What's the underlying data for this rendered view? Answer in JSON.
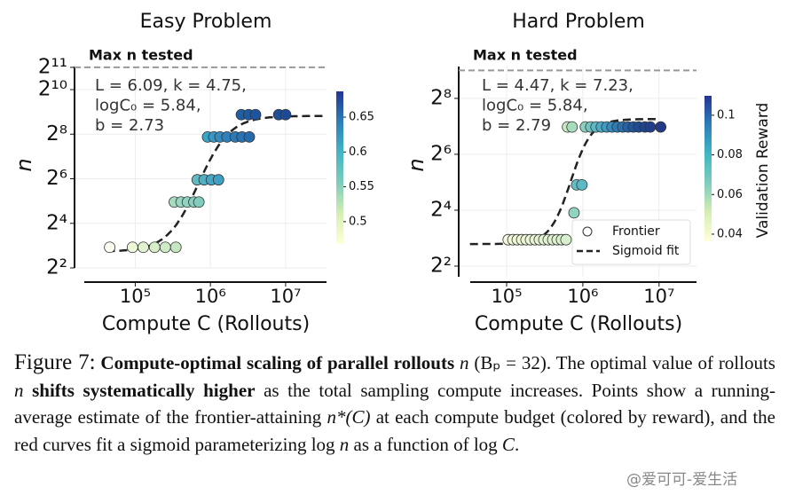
{
  "chart_data": [
    {
      "type": "scatter",
      "title": "Easy Problem",
      "xlabel": "Compute C (Rollouts)",
      "ylabel": "n",
      "xscale": "log",
      "yscale": "log2",
      "xlim": [
        21000,
        35000000
      ],
      "ylim": [
        4,
        2100
      ],
      "xticks": [
        {
          "value": 100000,
          "label": "10⁵"
        },
        {
          "value": 1000000,
          "label": "10⁶"
        },
        {
          "value": 10000000,
          "label": "10⁷"
        }
      ],
      "yticks": [
        {
          "value": 4,
          "label": "2²"
        },
        {
          "value": 16,
          "label": "2⁴"
        },
        {
          "value": 64,
          "label": "2⁶"
        },
        {
          "value": 256,
          "label": "2⁸"
        },
        {
          "value": 1024,
          "label": "2¹⁰"
        },
        {
          "value": 2048,
          "label": "2¹¹"
        }
      ],
      "grid": true,
      "max_n": 2048,
      "max_n_label": "Max n tested",
      "series": [
        {
          "x": [
            45700,
            92000,
            128000,
            181000,
            251000,
            347000,
            331000,
            407000,
            494000,
            603000,
            702000,
            667000,
            825000,
            1030000,
            1280000,
            916000,
            1110000,
            1340000,
            1660000,
            2140000,
            2630000,
            3290000,
            2580000,
            3230000,
            3980000,
            8100000,
            10000000
          ],
          "values": [
            7.6,
            7.6,
            7.6,
            7.6,
            7.6,
            7.6,
            31,
            31,
            31,
            31,
            31,
            62,
            62,
            62,
            62,
            235,
            235,
            235,
            235,
            235,
            235,
            235,
            470,
            470,
            470,
            470,
            470
          ],
          "colors": [
            "#fbfdf0",
            "#eef8d8",
            "#e1f3cf",
            "#d6efc8",
            "#cdebc4",
            "#c4e7c0",
            "#a6dcc0",
            "#98d6c1",
            "#8fd3c0",
            "#88cfbf",
            "#80ccbf",
            "#5fbcc3",
            "#4fb1c6",
            "#45a7c7",
            "#3f9fc5",
            "#3aa4c6",
            "#3a96c2",
            "#348bbf",
            "#2f80ba",
            "#2c79b6",
            "#2a72b2",
            "#276aad",
            "#1f5fa5",
            "#1e5aa2",
            "#1d549f",
            "#1e4f99",
            "#1d4a94"
          ]
        }
      ],
      "fit": {
        "L": 6.09,
        "k": 4.75,
        "logC0": 5.84,
        "b": 2.73
      },
      "fit_xrange": [
        42000,
        35000000
      ],
      "fit_labels": [
        "L = 6.09, k = 4.75,",
        "logC₀ = 5.84,",
        "b = 2.73"
      ],
      "colorbar": {
        "lim": [
          0.468,
          0.687
        ],
        "ticks": [
          0.5,
          0.55,
          0.6,
          0.65
        ]
      },
      "legend": false
    },
    {
      "type": "scatter",
      "title": "Hard Problem",
      "xlabel": "Compute C (Rollouts)",
      "ylabel": "n",
      "xscale": "log",
      "yscale": "log2",
      "xlim": [
        23500,
        31000000
      ],
      "ylim": [
        3.07,
        564
      ],
      "xticks": [
        {
          "value": 100000,
          "label": "10⁵"
        },
        {
          "value": 1000000,
          "label": "10⁶"
        },
        {
          "value": 10000000,
          "label": "10⁷"
        }
      ],
      "yticks": [
        {
          "value": 4,
          "label": "2²"
        },
        {
          "value": 16,
          "label": "2⁴"
        },
        {
          "value": 64,
          "label": "2⁶"
        },
        {
          "value": 256,
          "label": "2⁸"
        }
      ],
      "grid": true,
      "max_n": 512,
      "max_n_label": "Max n tested",
      "series": [
        {
          "name": "Frontier",
          "x": [
            105000,
            121000,
            138000,
            158000,
            180000,
            206000,
            236000,
            269000,
            308000,
            352000,
            403000,
            461000,
            526000,
            601000,
            766000,
            830000,
            973000,
            630000,
            722000,
            1080000,
            1270000,
            1490000,
            1750000,
            2060000,
            2420000,
            2840000,
            3340000,
            3920000,
            4600000,
            5410000,
            6520000,
            7660000,
            10500000
          ],
          "values": [
            7.7,
            7.7,
            7.7,
            7.7,
            7.7,
            7.7,
            7.7,
            7.7,
            7.7,
            7.7,
            7.7,
            7.7,
            7.7,
            7.7,
            15,
            30,
            30,
            126,
            126,
            126,
            126,
            126,
            126,
            126,
            126,
            126,
            126,
            126,
            126,
            126,
            126,
            126,
            126
          ],
          "colors": [
            "#f4fadb",
            "#f2f9d9",
            "#f0f8d8",
            "#eef8d7",
            "#ecf7d6",
            "#eaf6d5",
            "#e8f5d4",
            "#e6f4d3",
            "#e4f4d2",
            "#e2f3d1",
            "#e0f2d0",
            "#ddf1cf",
            "#daf0ce",
            "#d8f0cd",
            "#8fd3c0",
            "#62bfc4",
            "#5bbac5",
            "#c9eac4",
            "#a8dcbf",
            "#8cd1c0",
            "#6fc5c2",
            "#5db9c5",
            "#4aabc8",
            "#3d9bc4",
            "#348cbe",
            "#2d7eb8",
            "#2970b1",
            "#2463a8",
            "#1f579f",
            "#1d4c97",
            "#1f4590",
            "#213e8b",
            "#233a86"
          ]
        }
      ],
      "fit": {
        "L": 4.47,
        "k": 7.23,
        "logC0": 5.84,
        "b": 2.79
      },
      "fit_xrange": [
        33000,
        10000000
      ],
      "fit_name": "Sigmoid fit",
      "fit_labels": [
        "L = 4.47, k = 7.23,",
        "logC₀ = 5.84,",
        "b = 2.79"
      ],
      "colorbar": {
        "label": "Validation Reward",
        "lim": [
          0.0364,
          0.1098
        ],
        "ticks": [
          0.04,
          0.06,
          0.08,
          0.1
        ]
      },
      "legend": "lower right"
    }
  ],
  "caption": [
    {
      "text": "Figure 7:",
      "style": "label"
    },
    {
      "text": "  Compute-optimal scaling of parallel rollouts ",
      "style": "bold"
    },
    {
      "text": "n",
      "style": "italic"
    },
    {
      "text": " (Bₚ = 32)",
      "style": "normal"
    },
    {
      "text": ". The optimal value of rollouts ",
      "style": "normal"
    },
    {
      "text": "n",
      "style": "italic"
    },
    {
      "text": " shifts systematically higher",
      "style": "bold"
    },
    {
      "text": " as the total sampling compute increases.  Points show a running-average estimate of the frontier-attaining ",
      "style": "normal"
    },
    {
      "text": "n*(C)",
      "style": "italic"
    },
    {
      "text": " at each compute budget (colored by reward), and the red curves fit a sigmoid parameterizing log ",
      "style": "normal"
    },
    {
      "text": "n",
      "style": "italic"
    },
    {
      "text": " as a function of log ",
      "style": "normal"
    },
    {
      "text": "C",
      "style": "italic"
    },
    {
      "text": ".",
      "style": "normal"
    }
  ],
  "watermark": "@爱可可-爱生活"
}
